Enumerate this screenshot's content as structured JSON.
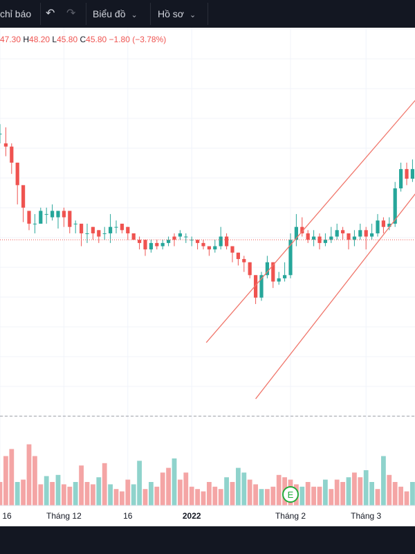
{
  "toolbar": {
    "indicators_label": "chỉ báo",
    "chart_label": "Biểu đồ",
    "profile_label": "Hồ sơ"
  },
  "legend": {
    "open_label": "",
    "open_value": "47.30",
    "high_label": "H",
    "high_value": "48.20",
    "low_label": "L",
    "low_value": "45.80",
    "close_label": "C",
    "close_value": "45.80",
    "change": "−1.80 (−3.78%)"
  },
  "colors": {
    "up": "#26a69a",
    "down": "#ef5350",
    "volume_up": "#8fd3cc",
    "volume_down": "#f4a5a5",
    "channel": "#f0766b",
    "background": "#ffffff",
    "grid": "#f0f3fa"
  },
  "chart_data": {
    "type": "candlestick",
    "x_ticks": [
      {
        "label": "16",
        "index": 0
      },
      {
        "label": "Tháng 12",
        "index": 11
      },
      {
        "label": "16",
        "index": 22
      },
      {
        "label": "2022",
        "index": 33
      },
      {
        "label": "Tháng 2",
        "index": 50
      },
      {
        "label": "Tháng 3",
        "index": 63
      }
    ],
    "y_range": [
      34,
      59
    ],
    "earnings_marker": {
      "label": "E",
      "index": 50
    },
    "channel_lines": [
      {
        "from": [
          35.5,
          39.4
        ],
        "to": [
          72,
          54.7
        ]
      },
      {
        "from": [
          44,
          35.9
        ],
        "to": [
          72,
          48.9
        ]
      }
    ],
    "dotted_price_line": 45.8,
    "candles": [
      [
        52.4,
        52.4,
        53.0,
        51.8
      ],
      [
        51.8,
        51.6,
        52.8,
        51.0
      ],
      [
        51.6,
        50.6,
        51.8,
        49.9
      ],
      [
        50.6,
        49.2,
        50.6,
        48.0
      ],
      [
        49.2,
        47.8,
        48.8,
        46.9
      ],
      [
        47.6,
        46.8,
        47.6,
        46.4
      ],
      [
        46.8,
        46.8,
        47.4,
        46.2
      ],
      [
        46.8,
        47.6,
        47.8,
        46.8
      ],
      [
        47.4,
        47.4,
        47.8,
        46.8
      ],
      [
        47.2,
        47.6,
        48.0,
        47.0
      ],
      [
        47.2,
        47.6,
        47.6,
        46.5
      ],
      [
        47.6,
        47.2,
        47.8,
        46.6
      ],
      [
        47.6,
        46.6,
        47.6,
        46.2
      ],
      [
        46.8,
        46.8,
        47.0,
        46.2
      ],
      [
        46.8,
        46.2,
        46.2,
        45.4
      ],
      [
        46.2,
        46.2,
        46.8,
        45.6
      ],
      [
        46.6,
        46.2,
        46.6,
        45.8
      ],
      [
        46.4,
        46.0,
        46.4,
        45.6
      ],
      [
        46.2,
        46.2,
        46.6,
        45.8
      ],
      [
        46.2,
        46.6,
        47.4,
        45.6
      ],
      [
        46.6,
        46.6,
        47.0,
        46.2
      ],
      [
        46.8,
        46.4,
        46.8,
        46.2
      ],
      [
        46.6,
        46.2,
        46.6,
        45.8
      ],
      [
        46.2,
        45.8,
        46.2,
        45.8
      ],
      [
        45.8,
        45.6,
        46.0,
        45.2
      ],
      [
        45.8,
        45.2,
        45.8,
        44.8
      ],
      [
        45.2,
        45.6,
        45.8,
        45.0
      ],
      [
        45.6,
        45.4,
        45.8,
        45.2
      ],
      [
        45.4,
        45.6,
        45.8,
        45.2
      ],
      [
        45.6,
        45.8,
        46.0,
        45.4
      ],
      [
        46.0,
        45.8,
        46.2,
        45.4
      ],
      [
        46.0,
        46.2,
        46.4,
        45.8
      ],
      [
        46.0,
        46.0,
        46.2,
        45.6
      ],
      [
        45.8,
        45.8,
        46.0,
        45.4
      ],
      [
        45.8,
        45.6,
        45.8,
        45.2
      ],
      [
        45.6,
        45.4,
        45.8,
        45.2
      ],
      [
        45.4,
        45.2,
        45.4,
        44.8
      ],
      [
        45.2,
        45.4,
        45.8,
        45.0
      ],
      [
        45.4,
        46.0,
        46.6,
        45.2
      ],
      [
        46.0,
        45.4,
        46.2,
        45.2
      ],
      [
        45.4,
        45.0,
        45.4,
        44.4
      ],
      [
        45.0,
        44.6,
        45.0,
        44.2
      ],
      [
        44.6,
        44.4,
        44.8,
        43.8
      ],
      [
        44.4,
        43.6,
        44.4,
        43.4
      ],
      [
        43.6,
        42.2,
        43.6,
        41.8
      ],
      [
        42.2,
        43.6,
        43.8,
        42.0
      ],
      [
        43.6,
        44.4,
        44.8,
        43.4
      ],
      [
        44.4,
        43.2,
        44.4,
        42.8
      ],
      [
        43.2,
        43.4,
        43.8,
        43.0
      ],
      [
        43.4,
        43.6,
        44.4,
        43.2
      ],
      [
        43.6,
        45.8,
        46.2,
        43.4
      ],
      [
        45.8,
        46.6,
        47.4,
        45.4
      ],
      [
        46.6,
        46.2,
        47.2,
        46.0
      ],
      [
        46.2,
        45.8,
        46.4,
        45.6
      ],
      [
        45.8,
        46.0,
        46.4,
        45.4
      ],
      [
        46.0,
        45.6,
        46.2,
        45.2
      ],
      [
        45.6,
        45.8,
        46.2,
        45.4
      ],
      [
        45.8,
        46.0,
        46.6,
        45.6
      ],
      [
        46.0,
        46.4,
        46.8,
        45.8
      ],
      [
        46.4,
        46.2,
        46.6,
        45.8
      ],
      [
        46.2,
        45.8,
        46.2,
        45.2
      ],
      [
        45.8,
        46.0,
        46.4,
        45.4
      ],
      [
        46.0,
        46.4,
        46.8,
        45.8
      ],
      [
        46.4,
        46.0,
        46.6,
        45.2
      ],
      [
        46.0,
        46.2,
        46.8,
        45.8
      ],
      [
        46.2,
        47.0,
        47.4,
        46.0
      ],
      [
        47.0,
        46.6,
        47.2,
        46.2
      ],
      [
        46.6,
        46.8,
        47.2,
        46.4
      ],
      [
        46.8,
        49.0,
        49.4,
        46.6
      ],
      [
        49.0,
        50.2,
        50.6,
        48.8
      ],
      [
        50.2,
        49.6,
        50.6,
        49.2
      ],
      [
        49.6,
        50.2,
        50.8,
        49.4
      ]
    ],
    "volume": [
      [
        0.2,
        "down"
      ],
      [
        0.42,
        "down"
      ],
      [
        0.48,
        "down"
      ],
      [
        0.2,
        "up"
      ],
      [
        0.22,
        "down"
      ],
      [
        0.52,
        "down"
      ],
      [
        0.42,
        "down"
      ],
      [
        0.18,
        "down"
      ],
      [
        0.25,
        "up"
      ],
      [
        0.2,
        "down"
      ],
      [
        0.26,
        "up"
      ],
      [
        0.18,
        "down"
      ],
      [
        0.16,
        "down"
      ],
      [
        0.2,
        "up"
      ],
      [
        0.34,
        "down"
      ],
      [
        0.2,
        "down"
      ],
      [
        0.18,
        "down"
      ],
      [
        0.24,
        "up"
      ],
      [
        0.36,
        "down"
      ],
      [
        0.18,
        "up"
      ],
      [
        0.14,
        "down"
      ],
      [
        0.12,
        "down"
      ],
      [
        0.22,
        "down"
      ],
      [
        0.18,
        "up"
      ],
      [
        0.38,
        "up"
      ],
      [
        0.14,
        "down"
      ],
      [
        0.2,
        "up"
      ],
      [
        0.16,
        "down"
      ],
      [
        0.28,
        "down"
      ],
      [
        0.32,
        "down"
      ],
      [
        0.4,
        "up"
      ],
      [
        0.22,
        "down"
      ],
      [
        0.28,
        "down"
      ],
      [
        0.16,
        "down"
      ],
      [
        0.14,
        "down"
      ],
      [
        0.12,
        "down"
      ],
      [
        0.2,
        "down"
      ],
      [
        0.16,
        "down"
      ],
      [
        0.14,
        "down"
      ],
      [
        0.24,
        "up"
      ],
      [
        0.2,
        "down"
      ],
      [
        0.32,
        "up"
      ],
      [
        0.28,
        "up"
      ],
      [
        0.22,
        "down"
      ],
      [
        0.18,
        "down"
      ],
      [
        0.14,
        "up"
      ],
      [
        0.14,
        "down"
      ],
      [
        0.16,
        "down"
      ],
      [
        0.26,
        "down"
      ],
      [
        0.24,
        "down"
      ],
      [
        0.22,
        "down"
      ],
      [
        0.18,
        "down"
      ],
      [
        0.16,
        "up"
      ],
      [
        0.2,
        "down"
      ],
      [
        0.16,
        "down"
      ],
      [
        0.16,
        "down"
      ],
      [
        0.22,
        "up"
      ],
      [
        0.14,
        "down"
      ],
      [
        0.22,
        "down"
      ],
      [
        0.2,
        "down"
      ],
      [
        0.24,
        "up"
      ],
      [
        0.28,
        "down"
      ],
      [
        0.24,
        "down"
      ],
      [
        0.3,
        "up"
      ],
      [
        0.2,
        "up"
      ],
      [
        0.14,
        "down"
      ],
      [
        0.42,
        "up"
      ],
      [
        0.26,
        "down"
      ],
      [
        0.2,
        "down"
      ],
      [
        0.16,
        "down"
      ],
      [
        0.12,
        "down"
      ],
      [
        0.2,
        "up"
      ]
    ]
  }
}
